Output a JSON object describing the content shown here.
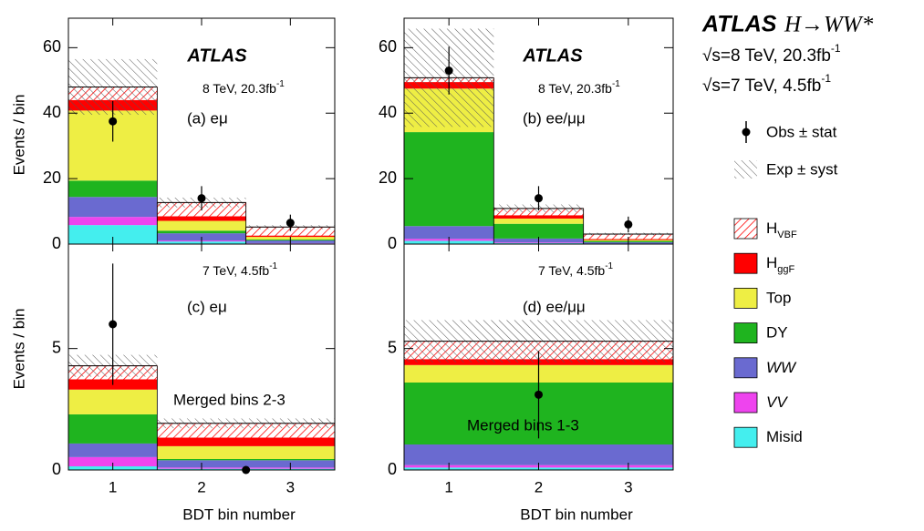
{
  "header": {
    "atlas": "ATLAS",
    "process": "H→WW*",
    "lines": [
      {
        "text": "√s=8 TeV, 20.3fb",
        "sup": "-1"
      },
      {
        "text": "√s=7 TeV, 4.5fb",
        "sup": "-1"
      }
    ]
  },
  "legend": {
    "obs": "Obs ± stat",
    "exp": "Exp ± syst"
  },
  "axis_labels": {
    "y": "Events / bin",
    "x": "BDT bin number"
  },
  "chart_data": [
    {
      "type": "stacked_histogram",
      "atlas": "ATLAS",
      "energy": "8 TeV, 20.3fb",
      "energy_sup": "-1",
      "label": "(a) eμ",
      "bins": [
        0.5,
        1.5,
        2.5,
        3.5
      ],
      "xlim": [
        0.5,
        3.5
      ],
      "xticks": [
        1,
        2,
        3
      ],
      "ylim": [
        0,
        69
      ],
      "yticks": [
        0,
        20,
        40,
        60
      ],
      "series": [
        {
          "name": "Misid",
          "color": "#44eeee",
          "values": [
            5.8,
            0.8,
            0.2
          ]
        },
        {
          "name": "VV",
          "color": "#ee44ee",
          "values": [
            2.5,
            0.3,
            0.1
          ]
        },
        {
          "name": "WW",
          "color": "#6a6ad0",
          "values": [
            6.1,
            2.2,
            0.8
          ]
        },
        {
          "name": "DY",
          "color": "#1fb41f",
          "values": [
            5.0,
            0.8,
            0.3
          ]
        },
        {
          "name": "Top",
          "color": "#eeee44",
          "values": [
            21.4,
            3.0,
            0.8
          ]
        },
        {
          "name": "H",
          "sub": "ggF",
          "color": "#ff0000",
          "values": [
            3.1,
            1.3,
            0.3
          ]
        },
        {
          "name": "H",
          "sub": "VBF",
          "color": "#ff0000",
          "hatch": true,
          "values": [
            4.1,
            4.3,
            2.7
          ]
        }
      ],
      "syst": [
        8.5,
        1.5,
        0.6
      ],
      "data": {
        "x": [
          1,
          2,
          3
        ],
        "values": [
          37.5,
          14,
          6.5
        ],
        "errors": [
          6.2,
          3.7,
          2.5
        ]
      }
    },
    {
      "type": "stacked_histogram",
      "atlas": "ATLAS",
      "energy": "8 TeV, 20.3fb",
      "energy_sup": "-1",
      "label": "(b) ee/μμ",
      "bins": [
        0.5,
        1.5,
        2.5,
        3.5
      ],
      "xlim": [
        0.5,
        3.5
      ],
      "xticks": [
        1,
        2,
        3
      ],
      "ylim": [
        0,
        69
      ],
      "yticks": [
        0,
        20,
        40,
        60
      ],
      "series": [
        {
          "name": "Misid",
          "color": "#44eeee",
          "values": [
            1.0,
            0.3,
            0.1
          ]
        },
        {
          "name": "VV",
          "color": "#ee44ee",
          "values": [
            0.6,
            0.2,
            0.05
          ]
        },
        {
          "name": "WW",
          "color": "#6a6ad0",
          "values": [
            3.9,
            1.2,
            0.4
          ]
        },
        {
          "name": "DY",
          "color": "#1fb41f",
          "values": [
            28.7,
            4.5,
            0.4
          ]
        },
        {
          "name": "Top",
          "color": "#eeee44",
          "values": [
            13.3,
            1.6,
            0.3
          ]
        },
        {
          "name": "H",
          "sub": "ggF",
          "color": "#ff0000",
          "values": [
            1.9,
            0.9,
            0.2
          ]
        },
        {
          "name": "H",
          "sub": "VBF",
          "color": "#ff0000",
          "hatch": true,
          "values": [
            1.4,
            2.2,
            1.6
          ]
        }
      ],
      "syst": [
        15,
        1.2,
        0.4
      ],
      "data": {
        "x": [
          1,
          2,
          3
        ],
        "values": [
          53,
          14,
          6
        ],
        "errors": [
          7.3,
          3.7,
          2.4
        ]
      }
    },
    {
      "type": "stacked_histogram",
      "energy": "7 TeV, 4.5fb",
      "energy_sup": "-1",
      "label": "(c) eμ",
      "note": "Merged bins 2-3",
      "bins": [
        0.5,
        1.5,
        3.5
      ],
      "xlim": [
        0.5,
        3.5
      ],
      "xticks": [
        1,
        2,
        3
      ],
      "ylim": [
        0,
        9.3
      ],
      "yticks": [
        0,
        5
      ],
      "series": [
        {
          "name": "Misid",
          "color": "#44eeee",
          "values": [
            0.15,
            0.05
          ]
        },
        {
          "name": "VV",
          "color": "#ee44ee",
          "values": [
            0.38,
            0.05
          ]
        },
        {
          "name": "WW",
          "color": "#6a6ad0",
          "values": [
            0.56,
            0.3
          ]
        },
        {
          "name": "DY",
          "color": "#1fb41f",
          "values": [
            1.2,
            0.05
          ]
        },
        {
          "name": "Top",
          "color": "#eeee44",
          "values": [
            1.02,
            0.53
          ]
        },
        {
          "name": "H",
          "sub": "ggF",
          "color": "#ff0000",
          "values": [
            0.41,
            0.34
          ]
        },
        {
          "name": "H",
          "sub": "VBF",
          "color": "#ff0000",
          "hatch": true,
          "values": [
            0.57,
            0.6
          ]
        }
      ],
      "syst": [
        0.45,
        0.2
      ],
      "data": {
        "x": [
          1,
          2.5
        ],
        "values": [
          6,
          0
        ],
        "errors": [
          2.5,
          0
        ]
      }
    },
    {
      "type": "stacked_histogram",
      "energy": "7 TeV, 4.5fb",
      "energy_sup": "-1",
      "label": "(d) ee/μμ",
      "note": "Merged bins 1-3",
      "bins": [
        0.5,
        3.5
      ],
      "xlim": [
        0.5,
        3.5
      ],
      "xticks": [
        1,
        2,
        3
      ],
      "ylim": [
        0,
        9.3
      ],
      "yticks": [
        0,
        5
      ],
      "series": [
        {
          "name": "Misid",
          "color": "#44eeee",
          "values": [
            0.1
          ]
        },
        {
          "name": "VV",
          "color": "#ee44ee",
          "values": [
            0.1
          ]
        },
        {
          "name": "WW",
          "color": "#6a6ad0",
          "values": [
            0.85
          ]
        },
        {
          "name": "DY",
          "color": "#1fb41f",
          "values": [
            2.55
          ]
        },
        {
          "name": "Top",
          "color": "#eeee44",
          "values": [
            0.72
          ]
        },
        {
          "name": "H",
          "sub": "ggF",
          "color": "#ff0000",
          "values": [
            0.23
          ]
        },
        {
          "name": "H",
          "sub": "VBF",
          "color": "#ff0000",
          "hatch": true,
          "values": [
            0.75
          ]
        }
      ],
      "syst": [
        0.87
      ],
      "data": {
        "x": [
          2
        ],
        "values": [
          3.1
        ],
        "errors": [
          1.8
        ]
      }
    }
  ]
}
